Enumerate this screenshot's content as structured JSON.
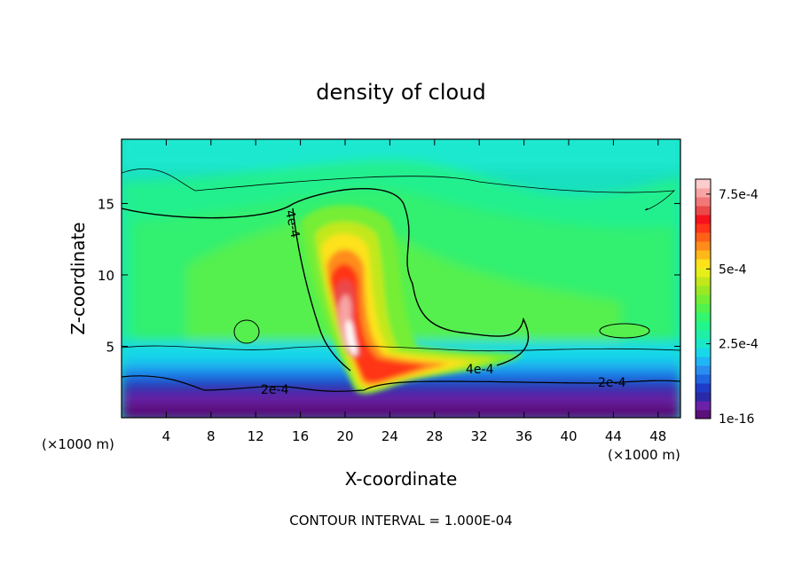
{
  "chart_data": {
    "type": "heatmap",
    "title": "density of cloud",
    "xlabel": "X-coordinate",
    "ylabel": "Z-coordinate",
    "x_unit_left": "(×1000 m)",
    "x_unit_right": "(×1000 m)",
    "xlim": [
      0,
      50
    ],
    "ylim": [
      0,
      19.5
    ],
    "x_ticks": [
      4,
      8,
      12,
      16,
      20,
      24,
      28,
      32,
      36,
      40,
      44,
      48
    ],
    "y_ticks": [
      5,
      10,
      15
    ],
    "colorbar": {
      "min": 1e-16,
      "max": 0.0008,
      "tick_labels": [
        "7.5e-4",
        "5e-4",
        "2.5e-4",
        "1e-16"
      ],
      "tick_values": [
        0.00075,
        0.0005,
        0.00025,
        1e-16
      ],
      "colors": [
        "#5a0f7a",
        "#6b21a8",
        "#2a2aa8",
        "#1e3cc8",
        "#1f66e0",
        "#2a8ef0",
        "#1fb6f5",
        "#19d7ea",
        "#19e8c8",
        "#1ef0a8",
        "#22f58a",
        "#33f56e",
        "#52f24e",
        "#74ee34",
        "#9ae824",
        "#c2e81c",
        "#e6ef1a",
        "#fde21a",
        "#ffb81a",
        "#ff8c1a",
        "#ff6018",
        "#ff3418",
        "#f5121c",
        "#ea4a4a",
        "#f27878",
        "#f8a4a4",
        "#fdcccc"
      ]
    },
    "contour_labels": [
      "4e-4",
      "2e-4",
      "4e-4",
      "2e-4"
    ],
    "contour_interval_text": "CONTOUR INTERVAL = 1.000E-04"
  }
}
